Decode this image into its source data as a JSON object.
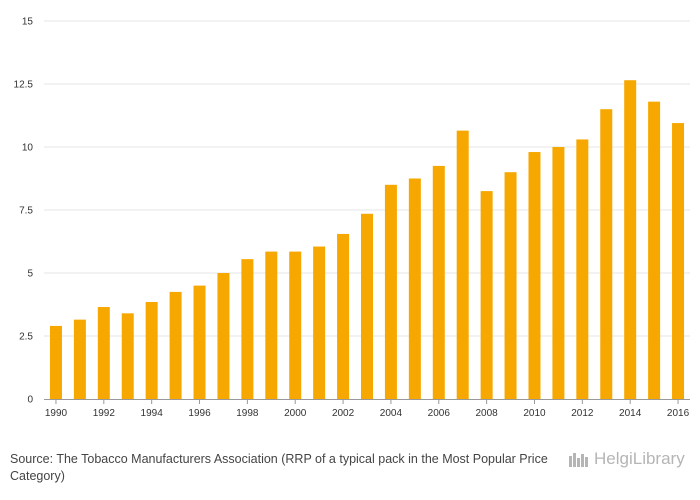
{
  "chart_data": {
    "type": "bar",
    "categories": [
      "1990",
      "1991",
      "1992",
      "1993",
      "1994",
      "1995",
      "1996",
      "1997",
      "1998",
      "1999",
      "2000",
      "2001",
      "2002",
      "2003",
      "2004",
      "2005",
      "2006",
      "2007",
      "2008",
      "2009",
      "2010",
      "2011",
      "2012",
      "2013",
      "2014",
      "2015",
      "2016"
    ],
    "x_tick_labels": [
      "1990",
      "1992",
      "1994",
      "1996",
      "1998",
      "2000",
      "2002",
      "2004",
      "2006",
      "2008",
      "2010",
      "2012",
      "2014",
      "2016"
    ],
    "values": [
      2.9,
      3.15,
      3.65,
      3.4,
      3.85,
      4.25,
      4.5,
      5.0,
      5.55,
      5.85,
      5.85,
      6.05,
      6.55,
      7.35,
      8.5,
      8.75,
      9.25,
      10.65,
      8.25,
      9.0,
      9.8,
      10.0,
      10.3,
      11.5,
      12.65,
      11.8,
      10.95
    ],
    "y_tick_labels": [
      "0",
      "2.5",
      "5",
      "7.5",
      "10",
      "12.5",
      "15"
    ],
    "y_ticks": [
      0,
      2.5,
      5,
      7.5,
      10,
      12.5,
      15
    ],
    "ylim": [
      0,
      15
    ],
    "grid": true,
    "bar_color": "#f7a800"
  },
  "footer": {
    "source_label": "Source:",
    "source_text": "The Tobacco Manufacturers Association (RRP of a typical pack in the Most Popular Price Category)"
  },
  "logo": {
    "text": "HelgiLibrary",
    "icon": "helgi-library-logo-icon",
    "color": "#b5b5b5"
  }
}
